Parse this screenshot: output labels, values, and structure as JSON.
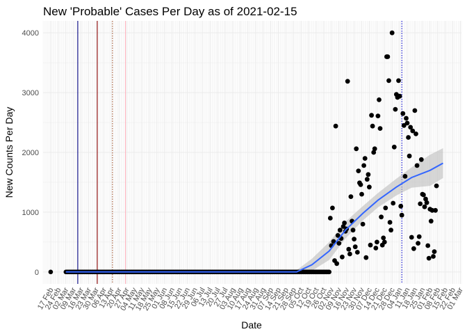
{
  "chart_data": {
    "type": "scatter",
    "title": "New 'Probable' Cases Per Day as of 2021-02-15",
    "xlabel": "Date",
    "ylabel": "New Counts Per Day",
    "ylim": [
      -200,
      4200
    ],
    "y_ticks": [
      0,
      1000,
      2000,
      3000,
      4000
    ],
    "x_range": [
      "2020-02-10",
      "2021-03-02"
    ],
    "x_tick_dates": [
      "2020-02-17",
      "2020-02-24",
      "2020-03-02",
      "2020-03-09",
      "2020-03-16",
      "2020-03-23",
      "2020-03-30",
      "2020-04-06",
      "2020-04-13",
      "2020-04-20",
      "2020-04-27",
      "2020-05-04",
      "2020-05-11",
      "2020-05-18",
      "2020-05-25",
      "2020-06-01",
      "2020-06-08",
      "2020-06-15",
      "2020-06-22",
      "2020-06-29",
      "2020-07-06",
      "2020-07-13",
      "2020-07-20",
      "2020-07-27",
      "2020-08-03",
      "2020-08-10",
      "2020-08-17",
      "2020-08-24",
      "2020-08-31",
      "2020-09-07",
      "2020-09-14",
      "2020-09-21",
      "2020-09-28",
      "2020-10-05",
      "2020-10-12",
      "2020-10-19",
      "2020-10-26",
      "2020-11-02",
      "2020-11-09",
      "2020-11-16",
      "2020-11-23",
      "2020-11-30",
      "2020-12-07",
      "2020-12-14",
      "2020-12-21",
      "2020-12-28",
      "2021-01-04",
      "2021-01-11",
      "2021-01-18",
      "2021-01-25",
      "2021-02-01",
      "2021-02-08",
      "2021-02-15",
      "2021-02-22",
      "2021-03-01"
    ],
    "x_tick_labels": [
      "17 Feb",
      "24 Feb",
      "02 Mar",
      "09 Mar",
      "16 Mar",
      "23 Mar",
      "30 Mar",
      "06 Apr",
      "13 Apr",
      "20 Apr",
      "27 Apr",
      "04 May",
      "11 May",
      "18 May",
      "25 May",
      "01 Jun",
      "08 Jun",
      "15 Jun",
      "22 Jun",
      "29 Jun",
      "06 Jul",
      "13 Jul",
      "20 Jul",
      "27 Jul",
      "03 Aug",
      "10 Aug",
      "17 Aug",
      "24 Aug",
      "31 Aug",
      "07 Sep",
      "14 Sep",
      "21 Sep",
      "28 Sep",
      "05 Oct",
      "12 Oct",
      "19 Oct",
      "26 Oct",
      "02 Nov",
      "09 Nov",
      "16 Nov",
      "23 Nov",
      "30 Nov",
      "07 Dec",
      "14 Dec",
      "21 Dec",
      "28 Dec",
      "04 Jan",
      "11 Jan",
      "18 Jan",
      "25 Jan",
      "01 Feb",
      "08 Feb",
      "15 Feb",
      "22 Feb",
      "01 Mar"
    ],
    "grid": true,
    "legend": "none",
    "colors": {
      "points": "#000000",
      "smooth_line": "#3366ff",
      "ribbon": "#bdbdbd",
      "grid": "#ebebeb",
      "vline_navy": "#000080",
      "vline_darkred": "#8b0000",
      "vline_brown_dotted": "#a0522d",
      "vline_pink": "#ffb6c1",
      "vline_blue_dotted": "#0000cd"
    },
    "vlines": [
      {
        "x": "2020-03-13",
        "style": "solid",
        "color_key": "vline_navy"
      },
      {
        "x": "2020-03-31",
        "style": "solid",
        "color_key": "vline_darkred"
      },
      {
        "x": "2020-04-14",
        "style": "dotted",
        "color_key": "vline_brown_dotted"
      },
      {
        "x": "2020-04-26",
        "style": "solid",
        "color_key": "vline_pink"
      },
      {
        "x": "2021-01-06",
        "style": "dotted",
        "color_key": "vline_blue_dotted"
      }
    ],
    "zero_period": {
      "start": "2020-03-02",
      "end": "2020-10-31",
      "value": 0
    },
    "series": [
      {
        "points": [
          [
            "2020-11-01",
            900
          ],
          [
            "2020-11-02",
            440
          ],
          [
            "2020-11-03",
            1070
          ],
          [
            "2020-11-04",
            510
          ],
          [
            "2020-11-05",
            190
          ],
          [
            "2020-11-06",
            2440
          ],
          [
            "2020-11-07",
            140
          ],
          [
            "2020-11-08",
            610
          ],
          [
            "2020-11-09",
            480
          ],
          [
            "2020-11-10",
            700
          ],
          [
            "2020-11-11",
            560
          ],
          [
            "2020-11-12",
            250
          ],
          [
            "2020-11-13",
            760
          ],
          [
            "2020-11-14",
            820
          ],
          [
            "2020-11-15",
            680
          ],
          [
            "2020-11-16",
            720
          ],
          [
            "2020-11-17",
            3190
          ],
          [
            "2020-11-18",
            380
          ],
          [
            "2020-11-19",
            300
          ],
          [
            "2020-11-20",
            1260
          ],
          [
            "2020-11-21",
            850
          ],
          [
            "2020-11-22",
            700
          ],
          [
            "2020-11-23",
            550
          ],
          [
            "2020-11-24",
            420
          ],
          [
            "2020-11-25",
            2060
          ],
          [
            "2020-11-26",
            330
          ],
          [
            "2020-11-27",
            1690
          ],
          [
            "2020-11-28",
            1490
          ],
          [
            "2020-11-29",
            1460
          ],
          [
            "2020-11-30",
            1300
          ],
          [
            "2020-12-01",
            800
          ],
          [
            "2020-12-02",
            1780
          ],
          [
            "2020-12-03",
            1900
          ],
          [
            "2020-12-04",
            240
          ],
          [
            "2020-12-05",
            1550
          ],
          [
            "2020-12-06",
            1630
          ],
          [
            "2020-12-07",
            1420
          ],
          [
            "2020-12-08",
            450
          ],
          [
            "2020-12-09",
            2620
          ],
          [
            "2020-12-10",
            2440
          ],
          [
            "2020-12-11",
            2000
          ],
          [
            "2020-12-12",
            2060
          ],
          [
            "2020-12-13",
            400
          ],
          [
            "2020-12-14",
            500
          ],
          [
            "2020-12-15",
            2610
          ],
          [
            "2020-12-16",
            2880
          ],
          [
            "2020-12-17",
            2400
          ],
          [
            "2020-12-18",
            920
          ],
          [
            "2020-12-19",
            450
          ],
          [
            "2020-12-20",
            570
          ],
          [
            "2020-12-21",
            500
          ],
          [
            "2020-12-22",
            1070
          ],
          [
            "2020-12-23",
            3600
          ],
          [
            "2020-12-24",
            3600
          ],
          [
            "2020-12-25",
            3200
          ],
          [
            "2020-12-26",
            830
          ],
          [
            "2020-12-27",
            700
          ],
          [
            "2020-12-28",
            4000
          ],
          [
            "2020-12-29",
            1150
          ],
          [
            "2020-12-30",
            2090
          ],
          [
            "2020-12-31",
            2720
          ],
          [
            "2021-01-01",
            2970
          ],
          [
            "2021-01-02",
            2920
          ],
          [
            "2021-01-03",
            3200
          ],
          [
            "2021-01-04",
            2940
          ],
          [
            "2021-01-05",
            1100
          ],
          [
            "2021-01-06",
            950
          ],
          [
            "2021-01-07",
            2650
          ],
          [
            "2021-01-08",
            2450
          ],
          [
            "2021-01-09",
            1600
          ],
          [
            "2021-01-10",
            2570
          ],
          [
            "2021-01-11",
            2490
          ],
          [
            "2021-01-12",
            2250
          ],
          [
            "2021-01-13",
            1940
          ],
          [
            "2021-01-14",
            2420
          ],
          [
            "2021-01-15",
            580
          ],
          [
            "2021-01-16",
            2360
          ],
          [
            "2021-01-17",
            390
          ],
          [
            "2021-01-18",
            2700
          ],
          [
            "2021-01-19",
            2310
          ],
          [
            "2021-01-20",
            1780
          ],
          [
            "2021-01-21",
            480
          ],
          [
            "2021-01-22",
            590
          ],
          [
            "2021-01-23",
            1140
          ],
          [
            "2021-01-24",
            1880
          ],
          [
            "2021-01-25",
            1300
          ],
          [
            "2021-01-26",
            1290
          ],
          [
            "2021-01-27",
            1090
          ],
          [
            "2021-01-28",
            1220
          ],
          [
            "2021-01-29",
            1160
          ],
          [
            "2021-01-30",
            440
          ],
          [
            "2021-01-31",
            230
          ],
          [
            "2021-02-01",
            1050
          ],
          [
            "2021-02-02",
            850
          ],
          [
            "2021-02-03",
            1030
          ],
          [
            "2021-02-04",
            260
          ],
          [
            "2021-02-05",
            340
          ],
          [
            "2021-02-06",
            1030
          ],
          [
            "2021-02-07",
            1440
          ]
        ]
      }
    ],
    "smooth_fit": [
      {
        "x": "2020-03-02",
        "y": 0,
        "lo": -20,
        "hi": 20
      },
      {
        "x": "2020-09-01",
        "y": 0,
        "lo": -20,
        "hi": 20
      },
      {
        "x": "2020-10-01",
        "y": 0,
        "lo": -30,
        "hi": 30
      },
      {
        "x": "2020-10-15",
        "y": 120,
        "lo": 20,
        "hi": 220
      },
      {
        "x": "2020-10-31",
        "y": 350,
        "lo": 200,
        "hi": 500
      },
      {
        "x": "2020-11-15",
        "y": 700,
        "lo": 560,
        "hi": 840
      },
      {
        "x": "2020-12-01",
        "y": 980,
        "lo": 860,
        "hi": 1100
      },
      {
        "x": "2020-12-15",
        "y": 1200,
        "lo": 1080,
        "hi": 1320
      },
      {
        "x": "2021-01-01",
        "y": 1420,
        "lo": 1280,
        "hi": 1560
      },
      {
        "x": "2021-01-15",
        "y": 1580,
        "lo": 1410,
        "hi": 1750
      },
      {
        "x": "2021-02-01",
        "y": 1700,
        "lo": 1440,
        "hi": 1960
      },
      {
        "x": "2021-02-13",
        "y": 1820,
        "lo": 1570,
        "hi": 2070
      }
    ]
  }
}
